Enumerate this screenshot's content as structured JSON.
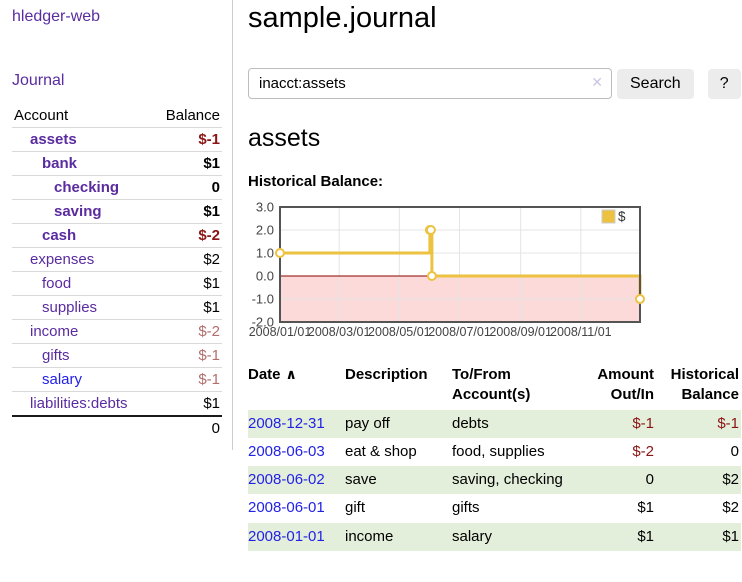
{
  "colors": {
    "link_purple": "#5a2ca0",
    "link_blue": "#2222e6",
    "negative_red": "#8b1414",
    "negative_muted": "#b36d6d",
    "row_green": "#e4efdb",
    "chart_gold": "#edc240",
    "negative_region_pink": "#fcdada",
    "zero_line_red": "#8b0000"
  },
  "sidebar": {
    "app_title": "hledger-web",
    "journal_link": "Journal",
    "accounts_table": {
      "account_header": "Account",
      "balance_header": "Balance",
      "rows": [
        {
          "name": "assets",
          "balance": "$-1",
          "indent": 1,
          "bold": true,
          "link_color": "purple",
          "balance_style": "neg-bold"
        },
        {
          "name": "bank",
          "balance": "$1",
          "indent": 2,
          "bold": true,
          "link_color": "purple",
          "balance_style": "bold"
        },
        {
          "name": "checking",
          "balance": "0",
          "indent": 3,
          "bold": true,
          "link_color": "purple",
          "balance_style": "bold"
        },
        {
          "name": "saving",
          "balance": "$1",
          "indent": 3,
          "bold": true,
          "link_color": "purple",
          "balance_style": "bold"
        },
        {
          "name": "cash",
          "balance": "$-2",
          "indent": 2,
          "bold": true,
          "link_color": "purple",
          "balance_style": "neg-bold"
        },
        {
          "name": "expenses",
          "balance": "$2",
          "indent": 1,
          "bold": false,
          "link_color": "purple",
          "balance_style": "plain"
        },
        {
          "name": "food",
          "balance": "$1",
          "indent": 2,
          "bold": false,
          "link_color": "purple",
          "balance_style": "plain"
        },
        {
          "name": "supplies",
          "balance": "$1",
          "indent": 2,
          "bold": false,
          "link_color": "purple",
          "balance_style": "plain"
        },
        {
          "name": "income",
          "balance": "$-2",
          "indent": 1,
          "bold": false,
          "link_color": "purple",
          "balance_style": "neg-muted"
        },
        {
          "name": "gifts",
          "balance": "$-1",
          "indent": 2,
          "bold": false,
          "link_color": "purple",
          "balance_style": "neg-muted"
        },
        {
          "name": "salary",
          "balance": "$-1",
          "indent": 2,
          "bold": false,
          "link_color": "blue",
          "balance_style": "neg-muted"
        },
        {
          "name": "liabilities:debts",
          "balance": "$1",
          "indent": 1,
          "bold": false,
          "link_color": "purple",
          "balance_style": "plain"
        }
      ],
      "total": "0"
    }
  },
  "main": {
    "title": "sample.journal",
    "search": {
      "value": "inacct:assets",
      "clear_icon": "✕",
      "search_label": "Search",
      "help_label": "?"
    },
    "account_heading": "assets",
    "chart_label": "Historical Balance:"
  },
  "chart_data": {
    "type": "line",
    "title": "Historical Balance:",
    "step": true,
    "grid": true,
    "legend": [
      {
        "label": "$",
        "color": "#edc240"
      }
    ],
    "legend_position": "top-right",
    "ylim": [
      -2,
      3
    ],
    "yticks": [
      3,
      2,
      1,
      0,
      -1,
      -2
    ],
    "xticks": [
      "2008/01/01",
      "2008/03/01",
      "2008/05/01",
      "2008/07/01",
      "2008/09/01",
      "2008/11/01"
    ],
    "xtick_days": [
      0,
      60,
      121,
      182,
      244,
      305
    ],
    "xrange_days": [
      0,
      365
    ],
    "series": [
      {
        "name": "$",
        "dates": [
          "2008-01-01",
          "2008-06-01",
          "2008-06-02",
          "2008-06-03",
          "2008-12-31"
        ],
        "x_days": [
          0,
          152,
          153,
          154,
          365
        ],
        "values": [
          1,
          2,
          2,
          0,
          -1
        ]
      }
    ],
    "line_color": "#edc240",
    "negative_region_color": "#fcdada",
    "zero_line_color": "#8b0000"
  },
  "register": {
    "headers": [
      "Date",
      "Description",
      "To/From Account(s)",
      "Amount Out/In",
      "Historical Balance"
    ],
    "sort_icon": "∧",
    "rows": [
      {
        "date": "2008-12-31",
        "description": "pay off",
        "accounts": "debts",
        "amount": "$-1",
        "amount_style": "neg",
        "balance": "$-1",
        "balance_style": "neg"
      },
      {
        "date": "2008-06-03",
        "description": "eat & shop",
        "accounts": "food, supplies",
        "amount": "$-2",
        "amount_style": "neg",
        "balance": "0",
        "balance_style": "plain"
      },
      {
        "date": "2008-06-02",
        "description": "save",
        "accounts": "saving, checking",
        "amount": "0",
        "amount_style": "plain",
        "balance": "$2",
        "balance_style": "plain"
      },
      {
        "date": "2008-06-01",
        "description": "gift",
        "accounts": "gifts",
        "amount": "$1",
        "amount_style": "plain",
        "balance": "$2",
        "balance_style": "plain"
      },
      {
        "date": "2008-01-01",
        "description": "income",
        "accounts": "salary",
        "amount": "$1",
        "amount_style": "plain",
        "balance": "$1",
        "balance_style": "plain"
      }
    ]
  }
}
